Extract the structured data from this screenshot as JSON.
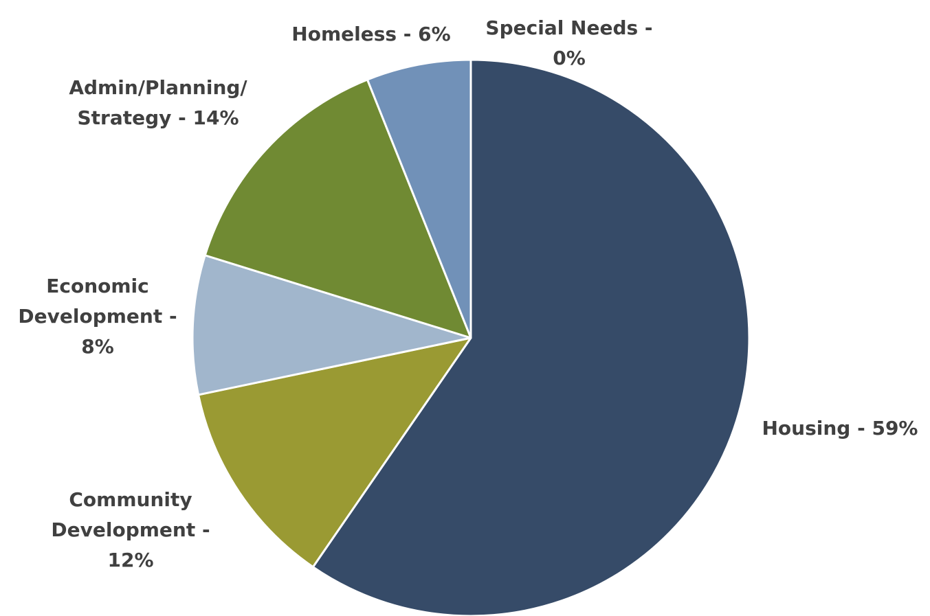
{
  "chart_data": {
    "type": "pie",
    "labels": [
      [
        "Housing - 59%"
      ],
      [
        "Community",
        "Development -",
        "12%"
      ],
      [
        "Economic",
        "Development -",
        "8%"
      ],
      [
        "Admin/Planning/",
        "Strategy - 14%"
      ],
      [
        "Homeless - 6%"
      ],
      [
        "Special Needs -",
        "0%"
      ]
    ],
    "values": [
      59,
      12,
      8,
      14,
      6,
      0
    ],
    "colors": [
      "#364b68",
      "#9a9a33",
      "#a1b6cc",
      "#708a33",
      "#7191b8",
      "#c0c0c0"
    ]
  }
}
